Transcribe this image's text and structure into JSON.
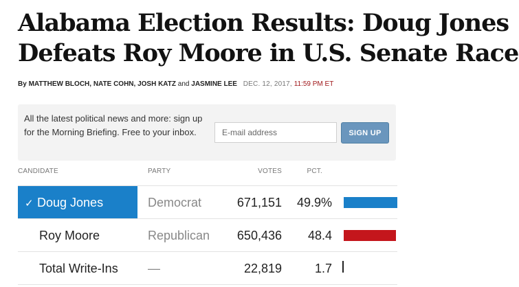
{
  "article": {
    "headline_line1": "Alabama Election Results: Doug Jones",
    "headline_line2": "Defeats Roy Moore in U.S. Senate Race",
    "byline": {
      "prefix": "By",
      "authors": "MATTHEW BLOCH, NATE COHN, JOSH KATZ",
      "connector": "and",
      "last_author": "JASMINE LEE",
      "date": "DEC. 12, 2017,",
      "time": "11:59 PM ET"
    }
  },
  "signup": {
    "text": "All the latest political news and more: sign up for the Morning Briefing. Free to your inbox.",
    "email_placeholder": "E-mail address",
    "button_label": "SIGN UP"
  },
  "results": {
    "headers": {
      "candidate": "CANDIDATE",
      "party": "PARTY",
      "votes": "VOTES",
      "pct": "PCT."
    },
    "rows": [
      {
        "candidate": "Doug Jones",
        "winner": true,
        "party": "Democrat",
        "votes": "671,151",
        "pct": "49.9%",
        "pct_value": 49.9,
        "bar_color": "#1a80c9"
      },
      {
        "candidate": "Roy Moore",
        "winner": false,
        "party": "Republican",
        "votes": "650,436",
        "pct": "48.4",
        "pct_value": 48.4,
        "bar_color": "#c4161c"
      },
      {
        "candidate": "Total Write-Ins",
        "winner": false,
        "party": "—",
        "votes": "22,819",
        "pct": "1.7",
        "pct_value": 1.7,
        "bar_color": "#222222"
      }
    ],
    "winner_marker": "✓"
  }
}
